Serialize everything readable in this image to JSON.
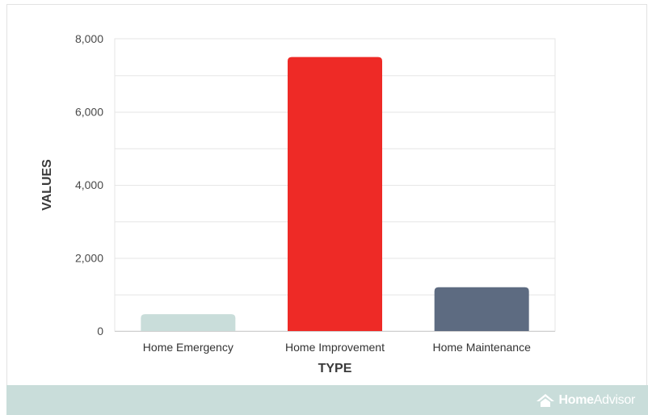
{
  "chart_data": {
    "type": "bar",
    "categories": [
      "Home Emergency",
      "Home Improvement",
      "Home Maintenance"
    ],
    "values": [
      460,
      7500,
      1200
    ],
    "colors": [
      "#c9ddda",
      "#ee2a26",
      "#5d6b81"
    ],
    "title": "",
    "xlabel": "TYPE",
    "ylabel": "VALUES",
    "ylim": [
      0,
      8000
    ],
    "yticks": [
      0,
      2000,
      4000,
      6000,
      8000
    ],
    "ytick_labels": [
      "0",
      "2,000",
      "4,000",
      "6,000",
      "8,000"
    ],
    "grid": true,
    "legend": "none"
  },
  "branding": {
    "logo_bold": "Home",
    "logo_light": "Advisor",
    "logo_icon": "house-roof-icon",
    "footer_color": "#c9ddda"
  }
}
